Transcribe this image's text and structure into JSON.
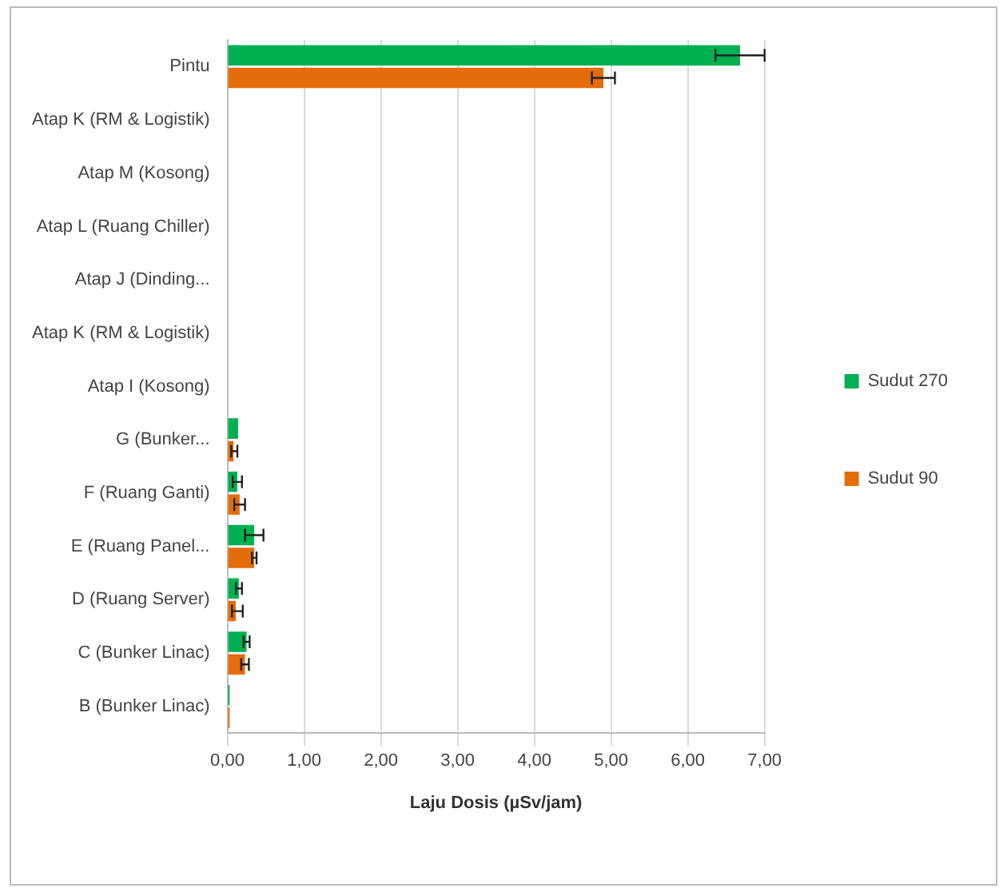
{
  "chart_data": {
    "type": "bar",
    "orientation": "horizontal",
    "xlabel": "Laju Dosis (µSv/jam)",
    "categories": [
      "Pintu",
      "Atap K (RM & Logistik)",
      "Atap M (Kosong)",
      "Atap L (Ruang Chiller)",
      "Atap J (Dinding...",
      "Atap K (RM & Logistik)",
      "Atap I (Kosong)",
      "G (Bunker...",
      "F (Ruang Ganti)",
      "E (Ruang Panel...",
      "D (Ruang Server)",
      "C (Bunker Linac)",
      "B (Bunker Linac)"
    ],
    "series": [
      {
        "name": "Sudut 270",
        "color": "#00b050",
        "values": [
          6.68,
          null,
          null,
          null,
          null,
          null,
          null,
          0.14,
          0.13,
          0.35,
          0.15,
          0.25,
          0.03
        ],
        "errors": [
          0.32,
          null,
          null,
          null,
          null,
          null,
          null,
          null,
          0.06,
          0.12,
          0.04,
          0.04,
          null
        ]
      },
      {
        "name": "Sudut 90",
        "color": "#e46c0a",
        "values": [
          4.9,
          null,
          null,
          null,
          null,
          null,
          null,
          0.08,
          0.16,
          0.35,
          0.11,
          0.23,
          0.03
        ],
        "errors": [
          0.15,
          null,
          null,
          null,
          null,
          null,
          null,
          [
            0.03,
            0.05
          ],
          0.07,
          0.03,
          [
            0.05,
            0.09
          ],
          0.05,
          null
        ]
      }
    ],
    "xlim": [
      0,
      7
    ],
    "xticks": [
      {
        "value": 0,
        "label": "0,00"
      },
      {
        "value": 1,
        "label": "1,00"
      },
      {
        "value": 2,
        "label": "2,00"
      },
      {
        "value": 3,
        "label": "3,00"
      },
      {
        "value": 4,
        "label": "4,00"
      },
      {
        "value": 5,
        "label": "5,00"
      },
      {
        "value": 6,
        "label": "6,00"
      },
      {
        "value": 7,
        "label": "7,00"
      }
    ],
    "grid": "x",
    "legend": "right"
  }
}
